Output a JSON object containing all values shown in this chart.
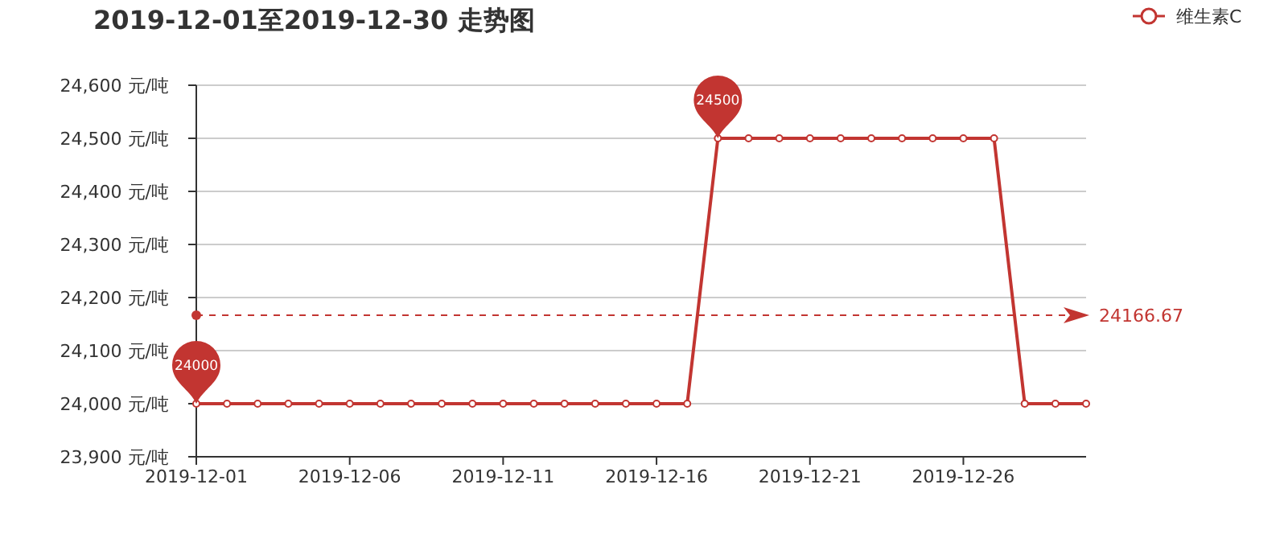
{
  "chart_data": {
    "type": "line",
    "title": "2019-12-01至2019-12-30 走势图",
    "x": [
      "2019-12-01",
      "2019-12-02",
      "2019-12-03",
      "2019-12-04",
      "2019-12-05",
      "2019-12-06",
      "2019-12-07",
      "2019-12-08",
      "2019-12-09",
      "2019-12-10",
      "2019-12-11",
      "2019-12-12",
      "2019-12-13",
      "2019-12-14",
      "2019-12-15",
      "2019-12-16",
      "2019-12-17",
      "2019-12-18",
      "2019-12-19",
      "2019-12-20",
      "2019-12-21",
      "2019-12-22",
      "2019-12-23",
      "2019-12-24",
      "2019-12-25",
      "2019-12-26",
      "2019-12-27",
      "2019-12-28",
      "2019-12-29",
      "2019-12-30"
    ],
    "series": [
      {
        "name": "维生素C",
        "color": "#c23531",
        "values": [
          24000,
          24000,
          24000,
          24000,
          24000,
          24000,
          24000,
          24000,
          24000,
          24000,
          24000,
          24000,
          24000,
          24000,
          24000,
          24000,
          24000,
          24500,
          24500,
          24500,
          24500,
          24500,
          24500,
          24500,
          24500,
          24500,
          24500,
          24000,
          24000,
          24000
        ]
      }
    ],
    "xlim": [
      "2019-12-01",
      "2019-12-30"
    ],
    "xticks": [
      "2019-12-01",
      "2019-12-06",
      "2019-12-11",
      "2019-12-16",
      "2019-12-21",
      "2019-12-26"
    ],
    "ylim": [
      23900,
      24600
    ],
    "yticks": [
      {
        "value": 23900,
        "label": "23,900 元/吨"
      },
      {
        "value": 24000,
        "label": "24,000 元/吨"
      },
      {
        "value": 24100,
        "label": "24,100 元/吨"
      },
      {
        "value": 24200,
        "label": "24,200 元/吨"
      },
      {
        "value": 24300,
        "label": "24,300 元/吨"
      },
      {
        "value": 24400,
        "label": "24,400 元/吨"
      },
      {
        "value": 24500,
        "label": "24,500 元/吨"
      },
      {
        "value": 24600,
        "label": "24,600 元/吨"
      }
    ],
    "grid": "y",
    "legend": "top right",
    "marker": "circle",
    "line_style": "solid",
    "ref_lines": [
      {
        "axis": "y",
        "value": 24166.67,
        "label": "24166.67",
        "color": "#c23531",
        "line_style": "dashed"
      }
    ],
    "annotations": [
      {
        "text": "24500",
        "x": "2019-12-18",
        "y": 24500
      },
      {
        "text": "24000",
        "x": "2019-12-01",
        "y": 24000
      }
    ]
  }
}
